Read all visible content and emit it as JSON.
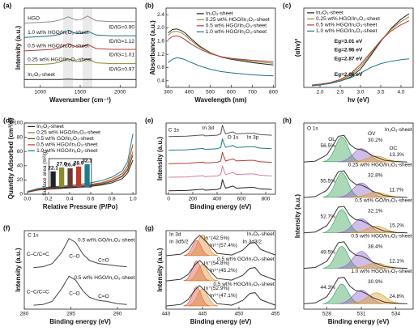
{
  "chart_data": [
    {
      "type": "line",
      "panel": "(a)",
      "xlabel": "Wavenumber (cm⁻¹)",
      "ylabel": "Intensity (a.u.)",
      "x": [
        800,
        1000,
        1150,
        1250,
        1350,
        1450,
        1520,
        1590,
        1700,
        1900,
        2200
      ],
      "xlim": [
        800,
        2200
      ],
      "xticks": [
        1000,
        1500,
        2000
      ],
      "ylim": [
        0,
        10
      ],
      "series": [
        {
          "name": "HGO",
          "color": "#8c8c8c",
          "values": [
            8.1,
            8.2,
            8.3,
            8.5,
            8.9,
            8.5,
            8.6,
            9.0,
            8.4,
            8.3,
            8.3
          ],
          "ratio_label": "ID/IG=0.90"
        },
        {
          "name": "1.0 wt% HGO/In₂O₃-sheet",
          "color": "#1f6f8b",
          "values": [
            6.3,
            6.4,
            6.5,
            6.7,
            7.2,
            6.8,
            6.8,
            7.1,
            6.6,
            6.5,
            6.5
          ],
          "ratio_label": "ID/IG=1.12"
        },
        {
          "name": "0.5 wt% HGO/In₂O₃-sheet",
          "color": "#b5383a",
          "values": [
            4.6,
            4.7,
            4.8,
            5.0,
            5.5,
            5.1,
            5.1,
            5.4,
            4.9,
            4.8,
            4.8
          ],
          "ratio_label": "ID/IG=1.01"
        },
        {
          "name": "0.25 wt% HGO/In₂O₃-sheet",
          "color": "#8b8b2a",
          "values": [
            2.9,
            2.9,
            3.0,
            3.2,
            3.6,
            3.3,
            3.3,
            3.6,
            3.1,
            3.0,
            3.0
          ],
          "ratio_label": "ID/IG=0.97"
        },
        {
          "name": "In₂O₃-sheet",
          "color": "#222222",
          "values": [
            1.0,
            1.0,
            1.0,
            1.0,
            1.05,
            1.0,
            1.0,
            1.0,
            1.0,
            1.0,
            1.0
          ]
        }
      ]
    },
    {
      "type": "line",
      "panel": "(b)",
      "xlabel": "Wavelength (nm)",
      "ylabel": "Absorbance (a.u.)",
      "x": [
        300,
        320,
        340,
        360,
        380,
        400,
        450,
        500,
        550,
        600,
        700,
        800
      ],
      "xlim": [
        290,
        810
      ],
      "xticks": [
        300,
        400,
        500,
        600,
        700,
        800
      ],
      "ylim": [
        0.2,
        2.6
      ],
      "yticks": [
        0.4,
        0.8,
        1.2,
        1.6,
        {
          "value": 2,
          "label": "2.0"
        },
        2.4
      ],
      "series": [
        {
          "name": "In₂O₃-sheet",
          "color": "#222222",
          "values": [
            1.85,
            1.95,
            1.97,
            1.93,
            1.85,
            1.72,
            1.45,
            1.25,
            1.12,
            1.05,
            0.95,
            0.88
          ]
        },
        {
          "name": "0.25 wt% HGO/In₂O₃-sheet",
          "color": "#8b8b2a",
          "values": [
            1.78,
            1.88,
            1.9,
            1.86,
            1.78,
            1.66,
            1.42,
            1.24,
            1.13,
            1.07,
            0.99,
            0.93
          ]
        },
        {
          "name": "0.5 wt% HGO/In₂O₃-sheet",
          "color": "#b5383a",
          "values": [
            1.65,
            1.74,
            1.76,
            1.72,
            1.65,
            1.55,
            1.36,
            1.22,
            1.13,
            1.08,
            1.02,
            0.98
          ]
        },
        {
          "name": "1.0 wt% HGO/In₂O₃-sheet",
          "color": "#1f6f8b",
          "values": [
            0.95,
            1.05,
            1.1,
            1.08,
            1.04,
            0.98,
            0.85,
            0.75,
            0.68,
            0.64,
            0.58,
            0.55
          ]
        }
      ]
    },
    {
      "type": "line",
      "panel": "(c)",
      "xlabel": "hv (eV)",
      "ylabel": "(αhv)²",
      "x": [
        1.8,
        2.0,
        2.25,
        2.5,
        2.75,
        3.0,
        3.25,
        3.5,
        3.75,
        4.0,
        4.2
      ],
      "xlim": [
        1.6,
        4.3
      ],
      "xticks": [
        {
          "value": 2,
          "label": "2.0"
        },
        2.5,
        {
          "value": 3,
          "label": "3.0"
        },
        3.5,
        {
          "value": 4,
          "label": "4.0"
        }
      ],
      "ylim": [
        0,
        10
      ],
      "series": [
        {
          "name": "In₂O₃-sheet",
          "color": "#222222",
          "values": [
            0.3,
            0.4,
            0.5,
            0.8,
            1.3,
            2.3,
            4.0,
            5.8,
            7.4,
            8.6,
            9.3
          ],
          "eg_label": "Eg=3.01 eV"
        },
        {
          "name": "0.25 wt% HGO/In₂O₃-sheet",
          "color": "#8b8b2a",
          "values": [
            0.3,
            0.4,
            0.6,
            0.9,
            1.5,
            2.6,
            4.2,
            5.9,
            7.3,
            8.3,
            8.9
          ],
          "eg_label": "Eg=2.96 eV"
        },
        {
          "name": "0.5 wt% HGO/In₂O₃-sheet",
          "color": "#b5383a",
          "values": [
            0.3,
            0.4,
            0.6,
            1.0,
            1.7,
            2.9,
            4.4,
            5.9,
            7.1,
            7.9,
            8.4
          ],
          "eg_label": "Eg=2.87 eV"
        },
        {
          "name": "1.0 wt% HGO/In₂O₃-sheet",
          "color": "#1f7a8c",
          "values": [
            0.2,
            0.3,
            0.5,
            0.8,
            1.2,
            1.8,
            2.5,
            3.0,
            3.3,
            3.5,
            3.6
          ],
          "eg_label": "Eg=2.66 eV"
        }
      ]
    },
    {
      "type": "line",
      "panel": "(d)",
      "xlabel": "Relative Pressure (P/Po)",
      "ylabel": "Quantity Adsorbed (cm³/g)",
      "x": [
        0,
        0.1,
        0.2,
        0.3,
        0.4,
        0.5,
        0.6,
        0.7,
        0.8,
        0.9,
        0.95,
        1.0
      ],
      "xlim": [
        -0.03,
        1.03
      ],
      "xticks": [
        {
          "value": 0,
          "label": "0.0"
        },
        0.2,
        0.4,
        0.6,
        0.8,
        {
          "value": 1,
          "label": "1.0"
        }
      ],
      "ylim": [
        0,
        100
      ],
      "yticks": [
        0,
        20,
        40,
        60,
        80,
        100
      ],
      "series": [
        {
          "name": "In₂O₃-sheet",
          "color": "#222222",
          "values": [
            3,
            6,
            7,
            8,
            9,
            10,
            11,
            13,
            16,
            22,
            30,
            48
          ]
        },
        {
          "name": "0.25 wt% HGO/In₂O₃-sheet",
          "color": "#8b8b2a",
          "values": [
            3,
            6,
            8,
            9,
            10,
            11,
            13,
            15,
            19,
            26,
            36,
            60
          ]
        },
        {
          "name": "0.5 wt% GO/In₂O₃-sheet",
          "color": "#6b3a2a",
          "values": [
            3,
            6,
            8,
            9,
            10,
            11,
            12,
            14,
            18,
            25,
            34,
            55
          ]
        },
        {
          "name": "0.5 wt% HGO/In₂O₃-sheet",
          "color": "#c0392b",
          "values": [
            4,
            7,
            9,
            10,
            11,
            12,
            14,
            16,
            21,
            29,
            40,
            70
          ]
        },
        {
          "name": "1.0 wt% HGO/In₂O₃-sheet",
          "color": "#1f7a8c",
          "values": [
            4,
            8,
            10,
            11,
            12,
            14,
            16,
            19,
            24,
            33,
            46,
            85
          ]
        }
      ],
      "inset": {
        "type": "bar",
        "ylabel": "Surface area (m²/g)",
        "ylim": [
          0,
          40
        ],
        "values": [
          22.1,
          27.6,
          26.4,
          28.9,
          32.1
        ]
      }
    },
    {
      "type": "line",
      "panel": "(e)",
      "xlabel": "Binding energy (eV)",
      "ylabel": "Intensity (a.u.)",
      "x": [
        0,
        150,
        285,
        300,
        400,
        430,
        444,
        452,
        470,
        531,
        560,
        665,
        703,
        750,
        850
      ],
      "xlim": [
        -20,
        880
      ],
      "xticks": [
        0,
        200,
        400,
        600,
        800
      ],
      "ylim": [
        0,
        10.5
      ],
      "series": [
        {
          "color": "#222222",
          "values": [
            0.5,
            0.55,
            0.75,
            0.6,
            0.7,
            0.9,
            2.2,
            1.7,
            0.9,
            1.2,
            0.9,
            1.0,
            1.0,
            0.8,
            0.7
          ]
        },
        {
          "color": "#e07a9a",
          "values": [
            2.5,
            2.55,
            2.75,
            2.6,
            2.7,
            2.9,
            4.2,
            3.7,
            2.9,
            3.2,
            2.9,
            3.0,
            3.0,
            2.8,
            2.7
          ]
        },
        {
          "color": "#c0392b",
          "values": [
            4.5,
            4.55,
            4.75,
            4.6,
            4.7,
            4.9,
            6.2,
            5.7,
            4.9,
            5.2,
            4.9,
            5.0,
            5.0,
            4.8,
            4.7
          ]
        },
        {
          "color": "#1f7a8c",
          "values": [
            6.5,
            6.55,
            6.75,
            6.6,
            6.7,
            6.9,
            8.2,
            7.7,
            6.9,
            7.2,
            6.9,
            7.0,
            7.0,
            6.8,
            6.7
          ]
        },
        {
          "color": "#555555",
          "values": [
            8.5,
            8.55,
            8.75,
            8.6,
            8.7,
            8.9,
            10.2,
            9.7,
            8.9,
            9.2,
            8.9,
            9.0,
            9.0,
            8.8,
            8.7
          ]
        }
      ],
      "annotations": [
        "C 1s",
        "In 3d",
        "O 1s",
        "In 3p"
      ]
    },
    {
      "type": "line",
      "panel": "(f)",
      "xlabel": "Binding energy (eV)",
      "ylabel": "Intensity (a.u.)",
      "x": [
        281,
        282,
        283,
        284,
        284.8,
        285.5,
        286.3,
        287,
        288,
        288.8,
        290,
        291
      ],
      "xlim": [
        280,
        292
      ],
      "xticks": [
        280,
        285,
        290
      ],
      "ylim": [
        0,
        10
      ],
      "series": [
        {
          "name": "0.5 wt% GO/In₂O₃-sheet",
          "color": "#444444",
          "values": [
            5.3,
            5.4,
            5.8,
            7.2,
            9.0,
            8.5,
            7.0,
            6.2,
            5.8,
            5.7,
            5.5,
            5.4
          ]
        },
        {
          "name": "0.5 wt% HGO/In₂O₃-sheet",
          "color": "#444444",
          "values": [
            0.5,
            0.6,
            1.0,
            2.6,
            4.2,
            3.7,
            2.3,
            1.5,
            1.1,
            1.0,
            0.7,
            0.6
          ]
        }
      ],
      "annotations": [
        "C 1s",
        "C–C/C=C",
        "C–O",
        "C=O",
        "C–C/C=C",
        "C–O",
        "C=O"
      ]
    },
    {
      "type": "line",
      "panel": "(g)",
      "xlabel": "Binding energy (eV)",
      "ylabel": "Intensity (a.u.)",
      "x": [
        440,
        442,
        443,
        444,
        444.6,
        445.5,
        447,
        449,
        450.5,
        451.5,
        452.2,
        453,
        455
      ],
      "xlim": [
        440,
        455
      ],
      "xticks": [
        440,
        445,
        450,
        455
      ],
      "ylim": [
        0,
        10
      ],
      "component_colors": [
        "#d9473a",
        "#d9892b"
      ],
      "series": [
        {
          "name": "In₂O₃-sheet",
          "color": "#333333",
          "values": [
            6.8,
            7.0,
            7.6,
            8.9,
            9.4,
            8.6,
            7.1,
            6.9,
            7.5,
            8.4,
            8.5,
            7.6,
            6.9
          ],
          "shares": [
            42.5,
            57.4
          ],
          "share_labels": [
            "In⁺(42.5%)",
            "In³⁺(57.4%)"
          ]
        },
        {
          "name": "0.5 wt% GO/In₂O₃-sheet",
          "color": "#333333",
          "values": [
            3.6,
            3.8,
            4.4,
            5.7,
            6.2,
            5.4,
            3.9,
            3.7,
            4.3,
            5.2,
            5.3,
            4.4,
            3.7
          ],
          "shares": [
            54.8,
            45.2
          ],
          "share_labels": [
            "In⁺(54.8%)",
            "In³⁺(45.2%)"
          ]
        },
        {
          "name": "0.5 wt% HGO/In₂O₃-sheet",
          "color": "#333333",
          "values": [
            0.4,
            0.6,
            1.2,
            2.5,
            3.0,
            2.2,
            0.7,
            0.5,
            1.1,
            2.0,
            2.1,
            1.2,
            0.5
          ],
          "shares": [
            52.9,
            47.1
          ],
          "share_labels": [
            "In⁺(52.9%)",
            "In³⁺(47.1%)"
          ]
        }
      ],
      "annotations": [
        "In 3d",
        "In 3d5/2",
        "In 3d3/2"
      ]
    },
    {
      "type": "line",
      "panel": "(h)",
      "xlabel": "Binding energy (eV)",
      "ylabel": "Intensity (a.u.)",
      "x": [
        526,
        527,
        528,
        528.5,
        529,
        529.5,
        530,
        530.5,
        531,
        531.5,
        532,
        533,
        534,
        535
      ],
      "xlim": [
        526,
        535.5
      ],
      "xticks": [
        528,
        531,
        534
      ],
      "ylim": [
        0,
        10.5
      ],
      "component_names": [
        "OL",
        "OV",
        "OC"
      ],
      "component_colors": [
        "#2e9e4f",
        "#8a5cc2",
        "#d99a1f"
      ],
      "series": [
        {
          "name": "In₂O₃-sheet",
          "color": "#333333",
          "values": [
            8.3,
            8.35,
            8.7,
            9.2,
            9.75,
            9.8,
            9.3,
            9.05,
            9.0,
            8.85,
            8.65,
            8.4,
            8.33,
            8.3
          ],
          "shares": [
            56.5,
            30.2,
            13.3
          ],
          "share_labels": [
            "56.5%",
            "30.2%",
            "13.3%"
          ]
        },
        {
          "name": "0.25 wt% HGO/In₂O₃-sheet",
          "color": "#333333",
          "values": [
            6.3,
            6.35,
            6.7,
            7.2,
            7.75,
            7.8,
            7.3,
            7.05,
            7.0,
            6.85,
            6.65,
            6.4,
            6.33,
            6.3
          ],
          "shares": [
            55.5,
            32.8,
            11.7
          ],
          "share_labels": [
            "55.5%",
            "32.8%",
            "11.7%"
          ]
        },
        {
          "name": "0.5 wt% GO/In₂O₃-sheet",
          "color": "#333333",
          "values": [
            4.3,
            4.35,
            4.7,
            5.2,
            5.75,
            5.8,
            5.3,
            5.05,
            5.0,
            4.85,
            4.65,
            4.4,
            4.33,
            4.3
          ],
          "shares": [
            52.7,
            32.1,
            15.2
          ],
          "share_labels": [
            "52.7%",
            "32.1%",
            "15.2%"
          ]
        },
        {
          "name": "0.5 wt% HGO/In₂O₃-sheet",
          "color": "#333333",
          "values": [
            2.3,
            2.35,
            2.7,
            3.2,
            3.75,
            3.8,
            3.3,
            3.05,
            3.0,
            2.85,
            2.65,
            2.4,
            2.33,
            2.3
          ],
          "shares": [
            49.5,
            38.4,
            12.1
          ],
          "share_labels": [
            "49.5%",
            "38.4%",
            "12.1%"
          ]
        },
        {
          "name": "1.0 wt% HGO/In₂O₃-sheet",
          "color": "#333333",
          "values": [
            0.3,
            0.35,
            0.7,
            1.2,
            1.75,
            1.8,
            1.3,
            1.05,
            1.0,
            0.85,
            0.65,
            0.4,
            0.33,
            0.3
          ],
          "shares": [
            44.3,
            30.9,
            24.8
          ],
          "share_labels": [
            "44.3%",
            "30.9%",
            "24.8%"
          ]
        }
      ],
      "annotations": [
        "O 1s"
      ]
    }
  ]
}
